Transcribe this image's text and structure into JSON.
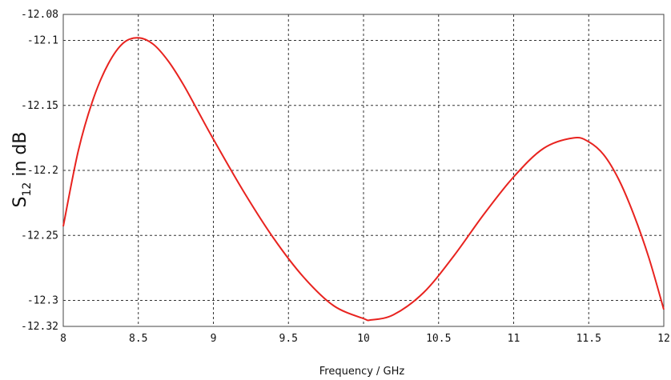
{
  "chart_data": {
    "type": "line",
    "xlabel": "Frequency / GHz",
    "ylabel_main": "S",
    "ylabel_sub": "12",
    "ylabel_rest": " in dB",
    "xlim": [
      8,
      12
    ],
    "ylim": [
      -12.32,
      -12.08
    ],
    "x_ticks": [
      8,
      8.5,
      9,
      9.5,
      10,
      10.5,
      11,
      11.5,
      12
    ],
    "x_tick_labels": [
      "8",
      "8.5",
      "9",
      "9.5",
      "10",
      "10.5",
      "11",
      "11.5",
      "12"
    ],
    "y_ticks": [
      -12.08,
      -12.1,
      -12.15,
      -12.2,
      -12.25,
      -12.3,
      -12.32
    ],
    "y_tick_labels": [
      "-12.08",
      "-12.1",
      "-12.15",
      "-12.2",
      "-12.25",
      "-12.3",
      "-12.32"
    ],
    "grid": true,
    "series": [
      {
        "color": "#e8231f",
        "x": [
          8.0,
          8.1,
          8.2,
          8.3,
          8.4,
          8.5,
          8.6,
          8.7,
          8.8,
          8.9,
          9.0,
          9.2,
          9.4,
          9.6,
          9.8,
          10.0,
          10.05,
          10.2,
          10.4,
          10.6,
          10.8,
          11.0,
          11.2,
          11.4,
          11.5,
          11.6,
          11.7,
          11.8,
          11.9,
          12.0
        ],
        "y": [
          -12.243,
          -12.185,
          -12.145,
          -12.118,
          -12.102,
          -12.098,
          -12.103,
          -12.116,
          -12.134,
          -12.155,
          -12.176,
          -12.216,
          -12.252,
          -12.282,
          -12.304,
          -12.314,
          -12.315,
          -12.311,
          -12.294,
          -12.266,
          -12.234,
          -12.205,
          -12.183,
          -12.175,
          -12.178,
          -12.188,
          -12.207,
          -12.234,
          -12.267,
          -12.307
        ]
      }
    ]
  }
}
